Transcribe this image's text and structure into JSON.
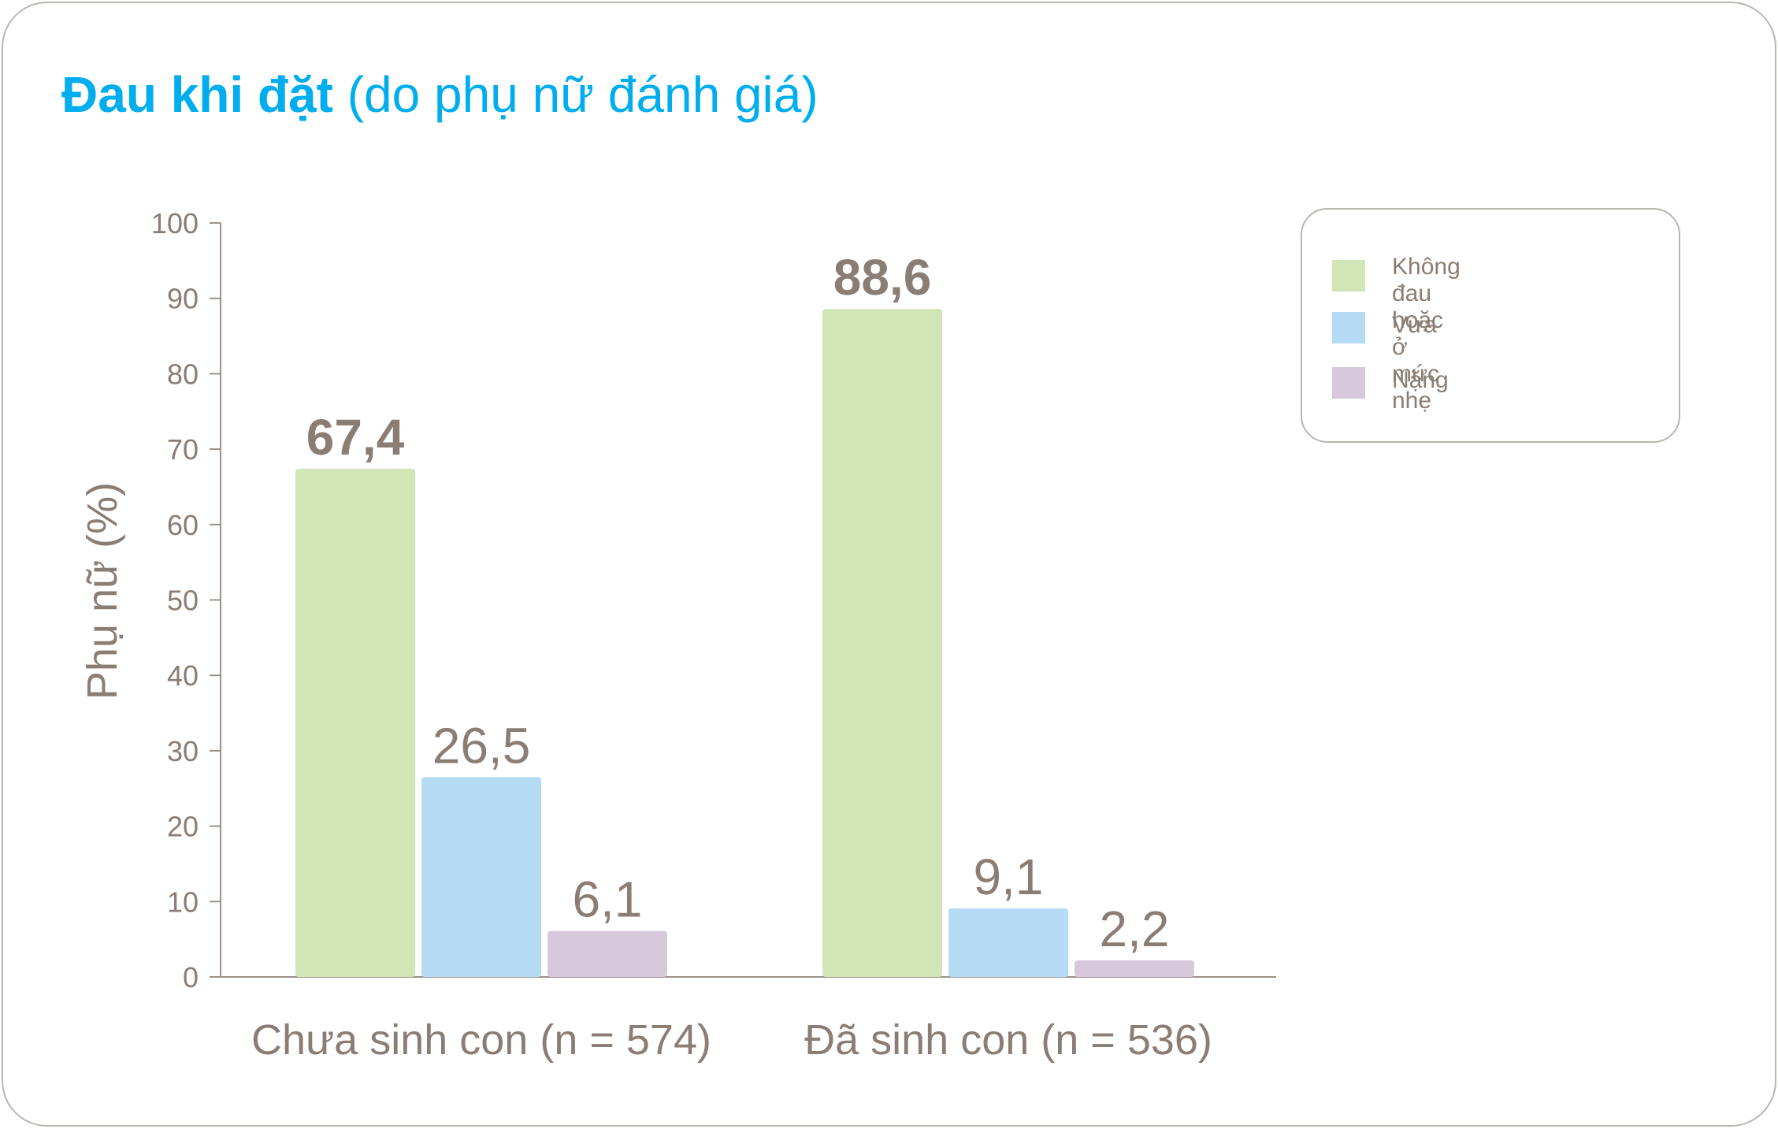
{
  "title": {
    "bold_part": "Đau khi đặt",
    "regular_part": " (do phụ nữ đánh giá)"
  },
  "colors": {
    "title": "#00adef",
    "text": "#8a7d74",
    "axis": "#9b918a",
    "border": "#b9b6b1",
    "series": [
      "#d1e5b7",
      "#b6dbf4",
      "#d7c9db"
    ]
  },
  "chart_data": {
    "type": "bar",
    "title": "Đau khi đặt (do phụ nữ đánh giá)",
    "xlabel": "",
    "ylabel": "Phụ nữ (%)",
    "ylim": [
      0,
      100
    ],
    "yticks": [
      "0",
      "10",
      "20",
      "30",
      "40",
      "50",
      "60",
      "70",
      "80",
      "90",
      "100"
    ],
    "categories": [
      "Chưa sinh con (n = 574)",
      "Đã sinh con (n = 536)"
    ],
    "series": [
      {
        "name": "Không đau hoặc\nở mức nhẹ",
        "values": [
          67.4,
          88.6
        ],
        "labels": [
          "67,4",
          "88,6"
        ],
        "color": "#d1e5b7",
        "label_bold": true
      },
      {
        "name": "Vừa",
        "values": [
          26.5,
          9.1
        ],
        "labels": [
          "26,5",
          "9,1"
        ],
        "color": "#b6dbf4",
        "label_bold": false
      },
      {
        "name": "Nặng",
        "values": [
          6.1,
          2.2
        ],
        "labels": [
          "6,1",
          "2,2"
        ],
        "color": "#d7c9db",
        "label_bold": false
      }
    ],
    "grid": false,
    "legend": "top-right"
  }
}
